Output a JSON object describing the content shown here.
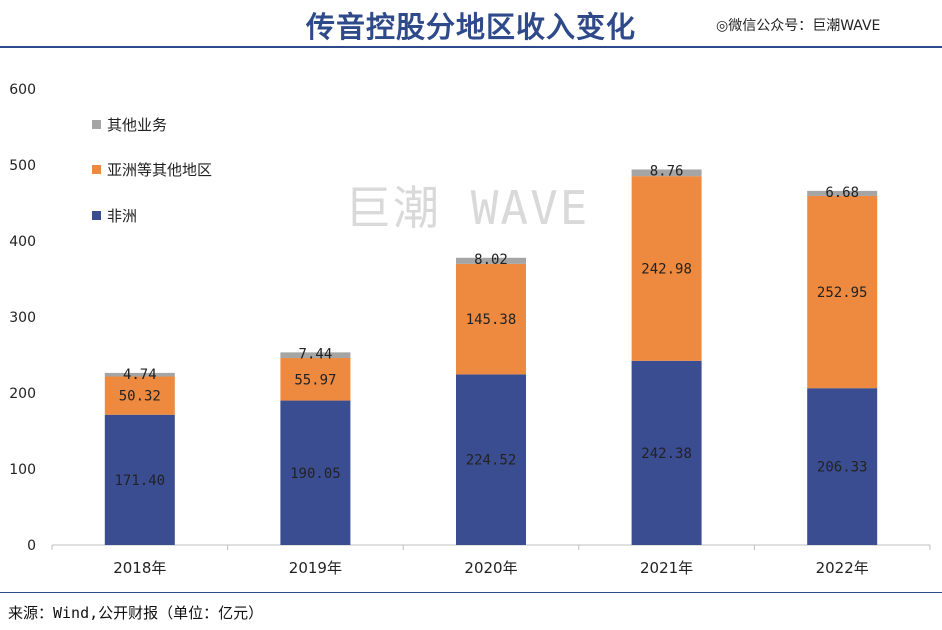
{
  "header": {
    "title": "传音控股分地区收入变化",
    "wechat": "◎微信公众号：巨潮WAVE"
  },
  "watermark": "巨潮 WAVE",
  "footer": {
    "source": "来源：Wind,公开财报（单位：亿元）"
  },
  "colors": {
    "africa": "#3b4d91",
    "asia": "#ed8a3f",
    "other": "#a5a5a5",
    "accent": "#2f4a8a"
  },
  "chart_data": {
    "type": "bar",
    "stacked": true,
    "categories": [
      "2018年",
      "2019年",
      "2020年",
      "2021年",
      "2022年"
    ],
    "series": [
      {
        "name": "非洲",
        "values": [
          171.4,
          190.05,
          224.52,
          242.38,
          206.33
        ],
        "labels": [
          "171.40",
          "190.05",
          "224.52",
          "242.38",
          "206.33"
        ],
        "color": "#3b4d91"
      },
      {
        "name": "亚洲等其他地区",
        "values": [
          50.32,
          55.97,
          145.38,
          242.98,
          252.95
        ],
        "labels": [
          "50.32",
          "55.97",
          "145.38",
          "242.98",
          "252.95"
        ],
        "color": "#ed8a3f"
      },
      {
        "name": "其他业务",
        "values": [
          4.74,
          7.44,
          8.02,
          8.76,
          6.68
        ],
        "labels": [
          "4.74",
          "7.44",
          "8.02",
          "8.76",
          "6.68"
        ],
        "color": "#a5a5a5"
      }
    ],
    "yticks": [
      "0",
      "100",
      "200",
      "300",
      "400",
      "500",
      "600"
    ],
    "ylim": [
      0,
      600
    ],
    "grid": false,
    "legend": "top-left"
  }
}
